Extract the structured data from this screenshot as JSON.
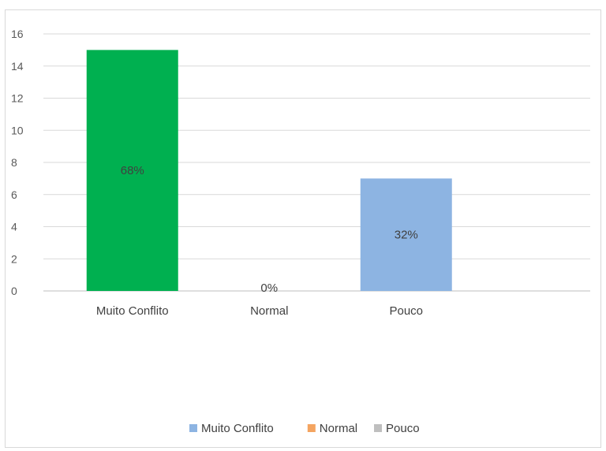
{
  "chart_data": {
    "type": "bar",
    "categories": [
      "Muito Conflito",
      "Normal",
      "Pouco"
    ],
    "values": [
      15,
      0,
      7
    ],
    "data_labels": [
      "68%",
      "0%",
      "32%"
    ],
    "bar_colors": [
      "#00b050",
      "#ed7d31",
      "#8db4e2"
    ],
    "ylim": [
      0,
      16
    ],
    "yticks": [
      0,
      2,
      4,
      6,
      8,
      10,
      12,
      14,
      16
    ],
    "grid": true,
    "legend_position": "bottom",
    "legend": [
      {
        "name": "Muito Conflito",
        "color": "#8db4e2"
      },
      {
        "name": "Normal",
        "color": "#f4a460"
      },
      {
        "name": "Pouco",
        "color": "#bfbfbf"
      }
    ]
  }
}
